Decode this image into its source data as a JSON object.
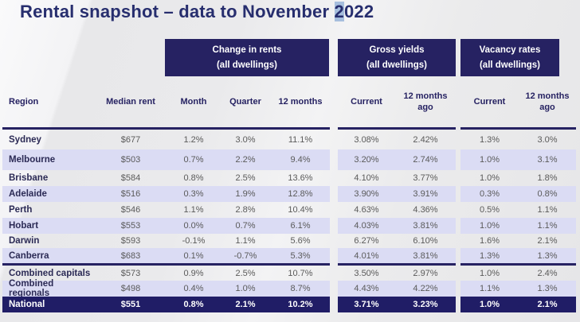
{
  "slide": {
    "title": {
      "before_highlight": "Rental snapshot – data to November ",
      "highlighted_char": "2",
      "after_highlight": "022"
    }
  },
  "colors": {
    "navy": "#262262",
    "total_row_navy": "#201d66",
    "lavender_row": "#dbdcf4",
    "data_text_grey": "#5a5a5a",
    "header_text_navy": "#262262",
    "region_text": "#2b2a55",
    "title_highlight_blue": "#a6bedd",
    "background_grey": "#eaeaec"
  },
  "table": {
    "group_headers": [
      {
        "line1": "Change in rents",
        "line2": "(all dwellings)"
      },
      {
        "line1": "Gross yields",
        "line2": "(all dwellings)"
      },
      {
        "line1": "Vacancy rates",
        "line2": "(all dwellings)"
      }
    ],
    "column_headers": {
      "region": "Region",
      "median_rent": "Median rent",
      "month": "Month",
      "quarter": "Quarter",
      "twelve_months": "12 months",
      "yields_current": "Current",
      "yields_12mo_ago": "12 months ago",
      "vacancy_current": "Current",
      "vacancy_12mo_ago": "12 months ago"
    },
    "rows": [
      {
        "region": "Sydney",
        "median_rent": "$677",
        "month": "1.2%",
        "quarter": "3.0%",
        "twelve_months": "11.1%",
        "yield_current": "3.08%",
        "yield_12mo_ago": "2.42%",
        "vacancy_current": "1.3%",
        "vacancy_12mo_ago": "3.0%"
      },
      {
        "region": "Melbourne",
        "median_rent": "$503",
        "month": "0.7%",
        "quarter": "2.2%",
        "twelve_months": "9.4%",
        "yield_current": "3.20%",
        "yield_12mo_ago": "2.74%",
        "vacancy_current": "1.0%",
        "vacancy_12mo_ago": "3.1%"
      },
      {
        "region": "Brisbane",
        "median_rent": "$584",
        "month": "0.8%",
        "quarter": "2.5%",
        "twelve_months": "13.6%",
        "yield_current": "4.10%",
        "yield_12mo_ago": "3.77%",
        "vacancy_current": "1.0%",
        "vacancy_12mo_ago": "1.8%"
      },
      {
        "region": "Adelaide",
        "median_rent": "$516",
        "month": "0.3%",
        "quarter": "1.9%",
        "twelve_months": "12.8%",
        "yield_current": "3.90%",
        "yield_12mo_ago": "3.91%",
        "vacancy_current": "0.3%",
        "vacancy_12mo_ago": "0.8%"
      },
      {
        "region": "Perth",
        "median_rent": "$546",
        "month": "1.1%",
        "quarter": "2.8%",
        "twelve_months": "10.4%",
        "yield_current": "4.63%",
        "yield_12mo_ago": "4.36%",
        "vacancy_current": "0.5%",
        "vacancy_12mo_ago": "1.1%"
      },
      {
        "region": "Hobart",
        "median_rent": "$553",
        "month": "0.0%",
        "quarter": "0.7%",
        "twelve_months": "6.1%",
        "yield_current": "4.03%",
        "yield_12mo_ago": "3.81%",
        "vacancy_current": "1.0%",
        "vacancy_12mo_ago": "1.1%"
      },
      {
        "region": "Darwin",
        "median_rent": "$593",
        "month": "-0.1%",
        "quarter": "1.1%",
        "twelve_months": "5.6%",
        "yield_current": "6.27%",
        "yield_12mo_ago": "6.10%",
        "vacancy_current": "1.6%",
        "vacancy_12mo_ago": "2.1%"
      },
      {
        "region": "Canberra",
        "median_rent": "$683",
        "month": "0.1%",
        "quarter": "-0.7%",
        "twelve_months": "5.3%",
        "yield_current": "4.01%",
        "yield_12mo_ago": "3.81%",
        "vacancy_current": "1.3%",
        "vacancy_12mo_ago": "1.3%"
      },
      {
        "region": "Combined capitals",
        "median_rent": "$573",
        "month": "0.9%",
        "quarter": "2.5%",
        "twelve_months": "10.7%",
        "yield_current": "3.50%",
        "yield_12mo_ago": "2.97%",
        "vacancy_current": "1.0%",
        "vacancy_12mo_ago": "2.4%",
        "group_start": true
      },
      {
        "region": "Combined regionals",
        "median_rent": "$498",
        "month": "0.4%",
        "quarter": "1.0%",
        "twelve_months": "8.7%",
        "yield_current": "4.43%",
        "yield_12mo_ago": "4.22%",
        "vacancy_current": "1.1%",
        "vacancy_12mo_ago": "1.3%"
      },
      {
        "region": "National",
        "median_rent": "$551",
        "month": "0.8%",
        "quarter": "2.1%",
        "twelve_months": "10.2%",
        "yield_current": "3.71%",
        "yield_12mo_ago": "3.23%",
        "vacancy_current": "1.0%",
        "vacancy_12mo_ago": "2.1%",
        "emphasis": "total"
      }
    ]
  },
  "chart_data": {
    "type": "table",
    "title": "Rental snapshot – data to November 2022",
    "column_groups": [
      {
        "label": "Change in rents (all dwellings)",
        "columns": [
          "Month",
          "Quarter",
          "12 months"
        ]
      },
      {
        "label": "Gross yields (all dwellings)",
        "columns": [
          "Current",
          "12 months ago"
        ]
      },
      {
        "label": "Vacancy rates (all dwellings)",
        "columns": [
          "Current",
          "12 months ago"
        ]
      }
    ],
    "columns": [
      "Region",
      "Median rent",
      "Change Month",
      "Change Quarter",
      "Change 12 months",
      "Gross yield Current",
      "Gross yield 12 months ago",
      "Vacancy Current",
      "Vacancy 12 months ago"
    ],
    "rows": [
      [
        "Sydney",
        "$677",
        "1.2%",
        "3.0%",
        "11.1%",
        "3.08%",
        "2.42%",
        "1.3%",
        "3.0%"
      ],
      [
        "Melbourne",
        "$503",
        "0.7%",
        "2.2%",
        "9.4%",
        "3.20%",
        "2.74%",
        "1.0%",
        "3.1%"
      ],
      [
        "Brisbane",
        "$584",
        "0.8%",
        "2.5%",
        "13.6%",
        "4.10%",
        "3.77%",
        "1.0%",
        "1.8%"
      ],
      [
        "Adelaide",
        "$516",
        "0.3%",
        "1.9%",
        "12.8%",
        "3.90%",
        "3.91%",
        "0.3%",
        "0.8%"
      ],
      [
        "Perth",
        "$546",
        "1.1%",
        "2.8%",
        "10.4%",
        "4.63%",
        "4.36%",
        "0.5%",
        "1.1%"
      ],
      [
        "Hobart",
        "$553",
        "0.0%",
        "0.7%",
        "6.1%",
        "4.03%",
        "3.81%",
        "1.0%",
        "1.1%"
      ],
      [
        "Darwin",
        "$593",
        "-0.1%",
        "1.1%",
        "5.6%",
        "6.27%",
        "6.10%",
        "1.6%",
        "2.1%"
      ],
      [
        "Canberra",
        "$683",
        "0.1%",
        "-0.7%",
        "5.3%",
        "4.01%",
        "3.81%",
        "1.3%",
        "1.3%"
      ],
      [
        "Combined capitals",
        "$573",
        "0.9%",
        "2.5%",
        "10.7%",
        "3.50%",
        "2.97%",
        "1.0%",
        "2.4%"
      ],
      [
        "Combined regionals",
        "$498",
        "0.4%",
        "1.0%",
        "8.7%",
        "4.43%",
        "4.22%",
        "1.1%",
        "1.3%"
      ],
      [
        "National",
        "$551",
        "0.8%",
        "2.1%",
        "10.2%",
        "3.71%",
        "3.23%",
        "1.0%",
        "2.1%"
      ]
    ]
  }
}
